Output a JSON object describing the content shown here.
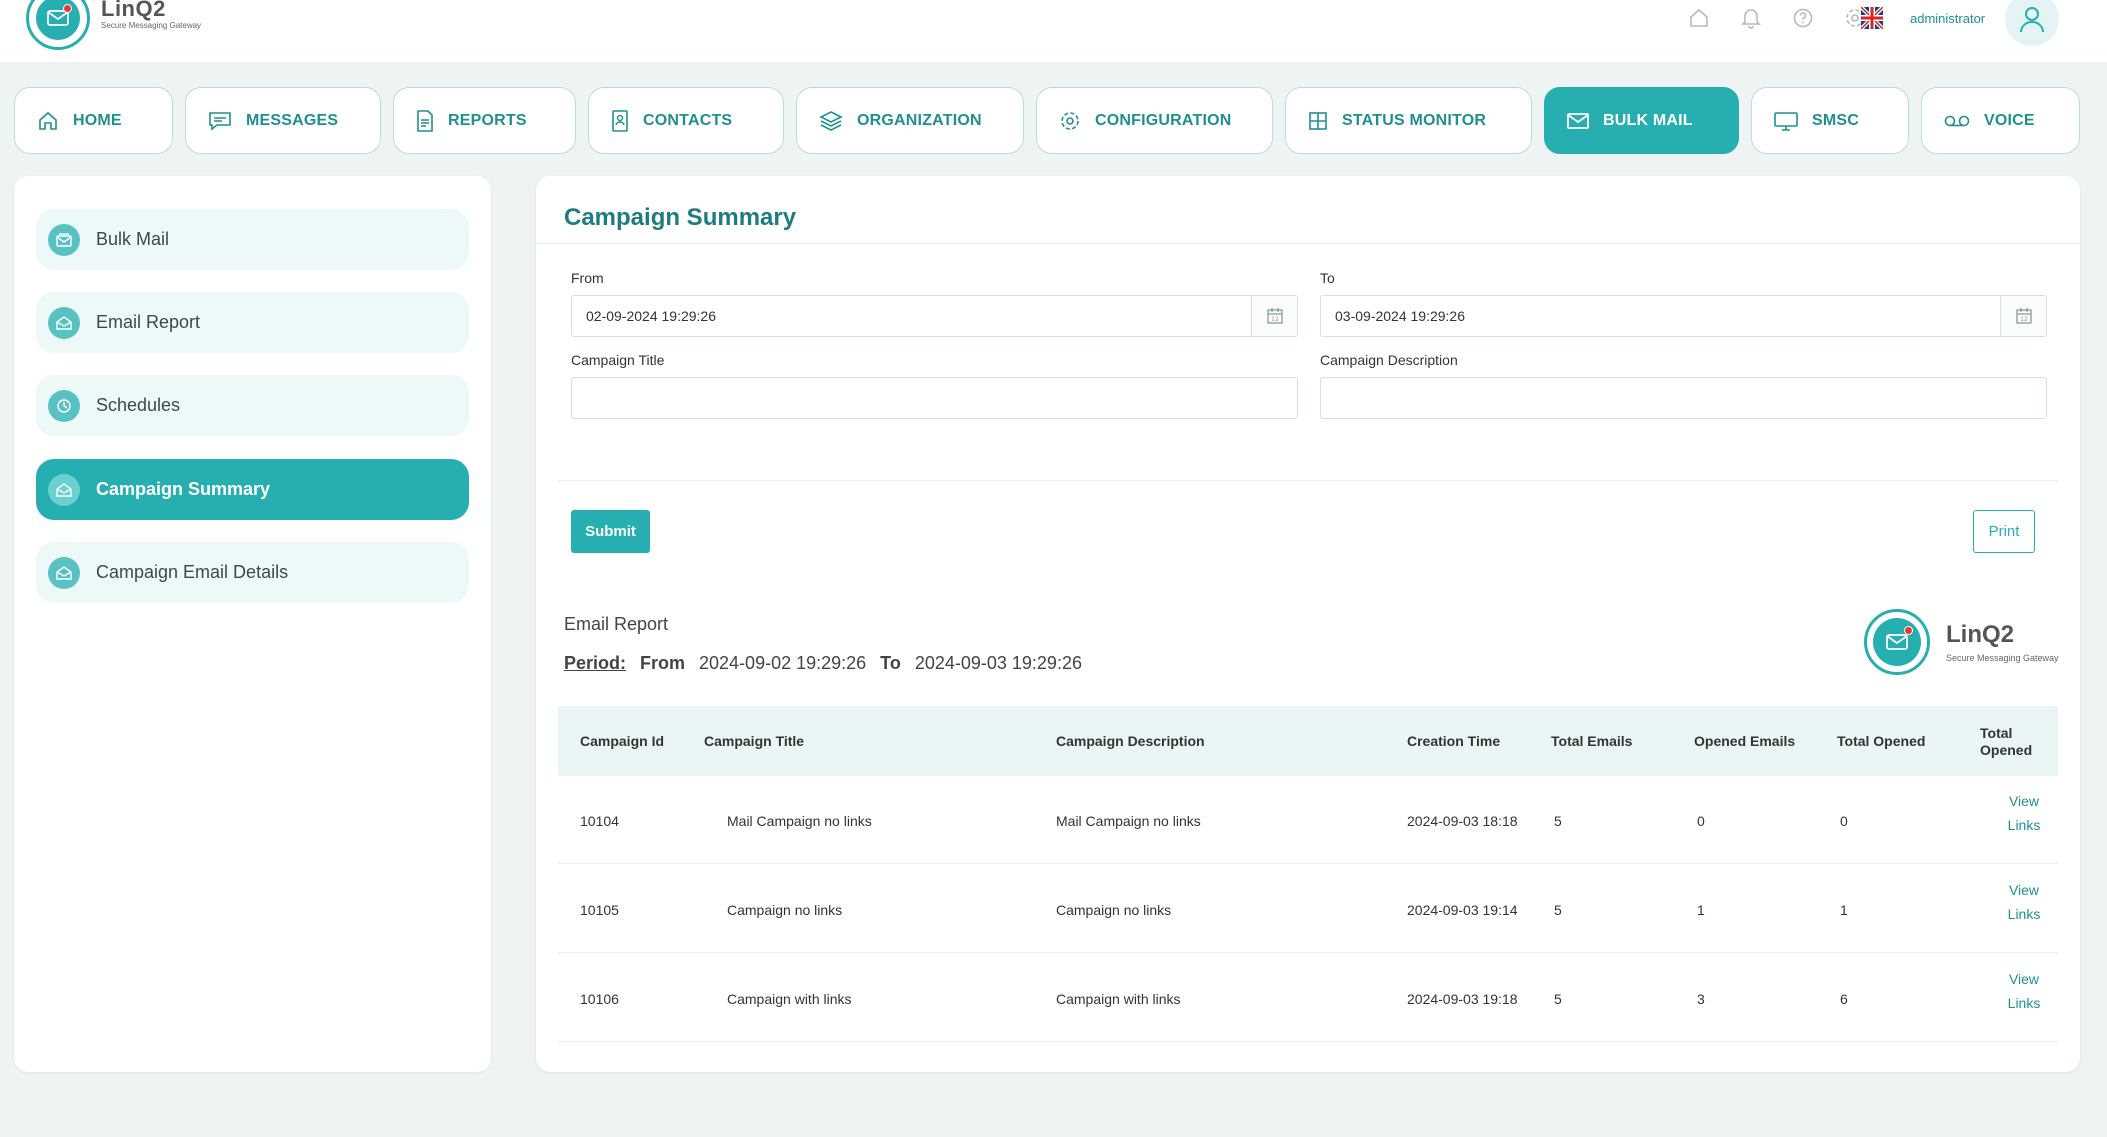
{
  "header": {
    "brand_name": "LinQ2",
    "brand_tagline": "Secure Messaging Gateway",
    "user_name": "administrator",
    "colors": {
      "primary": "#26aeb0",
      "dark": "#1e7c80"
    }
  },
  "nav": {
    "tabs": [
      {
        "label": "HOME",
        "icon": "home-icon"
      },
      {
        "label": "MESSAGES",
        "icon": "message-icon"
      },
      {
        "label": "REPORTS",
        "icon": "document-icon"
      },
      {
        "label": "CONTACTS",
        "icon": "contact-card-icon"
      },
      {
        "label": "ORGANIZATION",
        "icon": "layers-icon"
      },
      {
        "label": "CONFIGURATION",
        "icon": "gear-icon"
      },
      {
        "label": "STATUS MONITOR",
        "icon": "grid-icon"
      },
      {
        "label": "BULK MAIL",
        "icon": "mail-icon",
        "active": true
      },
      {
        "label": "SMSC",
        "icon": "monitor-icon"
      },
      {
        "label": "VOICE",
        "icon": "voicemail-icon"
      }
    ]
  },
  "sidebar": {
    "items": [
      {
        "label": "Bulk Mail"
      },
      {
        "label": "Email Report"
      },
      {
        "label": "Schedules"
      },
      {
        "label": "Campaign Summary",
        "active": true
      },
      {
        "label": "Campaign Email Details"
      }
    ]
  },
  "main": {
    "title": "Campaign Summary",
    "form": {
      "from_label": "From",
      "from_value": "02-09-2024 19:29:26",
      "to_label": "To",
      "to_value": "03-09-2024 19:29:26",
      "campaign_title_label": "Campaign Title",
      "campaign_title_value": "",
      "campaign_desc_label": "Campaign Description",
      "campaign_desc_value": "",
      "submit_label": "Submit",
      "print_label": "Print"
    },
    "report": {
      "title": "Email Report",
      "period_label": "Period:",
      "from_label": "From",
      "from_value": "2024-09-02 19:29:26",
      "to_label": "To",
      "to_value": "2024-09-03 19:29:26",
      "logo_name": "LinQ2",
      "logo_tagline": "Secure Messaging Gateway"
    },
    "table": {
      "columns": [
        "Campaign Id",
        "Campaign Title",
        "Campaign Description",
        "Creation Time",
        "Total Emails",
        "Opened Emails",
        "Total Opened",
        "Total Opened"
      ],
      "rows": [
        {
          "id": "10104",
          "title": "Mail Campaign no links",
          "description": "Mail Campaign no links",
          "created": "2024-09-03 18:18",
          "total_emails": "5",
          "opened_emails": "0",
          "total_opened": "0",
          "link_line1": "View",
          "link_line2": "Links"
        },
        {
          "id": "10105",
          "title": "Campaign no links",
          "description": "Campaign no links",
          "created": "2024-09-03 19:14",
          "total_emails": "5",
          "opened_emails": "1",
          "total_opened": "1",
          "link_line1": "View",
          "link_line2": "Links"
        },
        {
          "id": "10106",
          "title": "Campaign with links",
          "description": "Campaign with links",
          "created": "2024-09-03 19:18",
          "total_emails": "5",
          "opened_emails": "3",
          "total_opened": "6",
          "link_line1": "View",
          "link_line2": "Links"
        }
      ]
    }
  }
}
